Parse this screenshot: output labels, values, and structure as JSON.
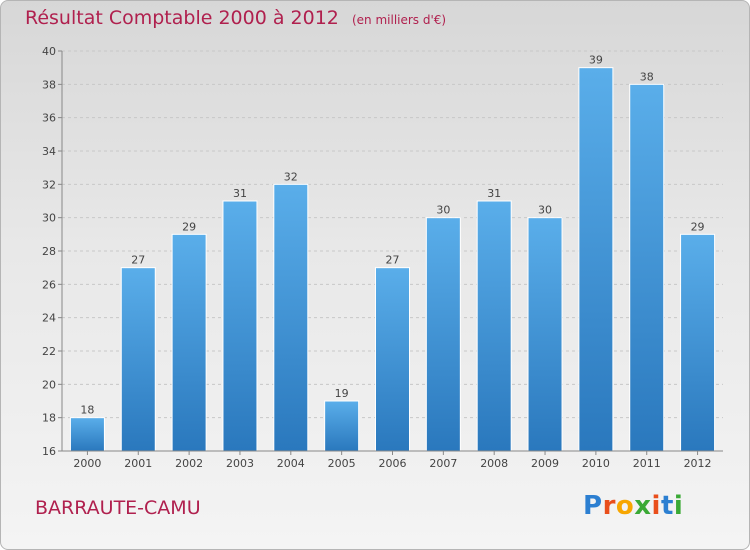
{
  "chart_data": {
    "type": "bar",
    "title": "Résultat Comptable 2000 à 2012",
    "subtitle": "(en milliers d'€)",
    "xlabel": "",
    "ylabel": "",
    "categories": [
      "2000",
      "2001",
      "2002",
      "2003",
      "2004",
      "2005",
      "2006",
      "2007",
      "2008",
      "2009",
      "2010",
      "2011",
      "2012"
    ],
    "values": [
      18,
      27,
      29,
      31,
      32,
      19,
      27,
      30,
      31,
      30,
      39,
      38,
      29
    ],
    "ylim": [
      16,
      40
    ],
    "yticks": [
      16,
      18,
      20,
      22,
      24,
      26,
      28,
      30,
      32,
      34,
      36,
      38,
      40
    ],
    "grid": true,
    "bar_color": "#4da3e2"
  },
  "commune": "BARRAUTE-CAMU",
  "logo": {
    "letters": [
      "P",
      "r",
      "o",
      "x",
      "i",
      "t",
      "i"
    ],
    "colors": [
      "#2c7fd1",
      "#e94e1b",
      "#f7a600",
      "#3aa935",
      "#e94e1b",
      "#2c7fd1",
      "#3aa935"
    ]
  },
  "accent_color": "#b0204e"
}
